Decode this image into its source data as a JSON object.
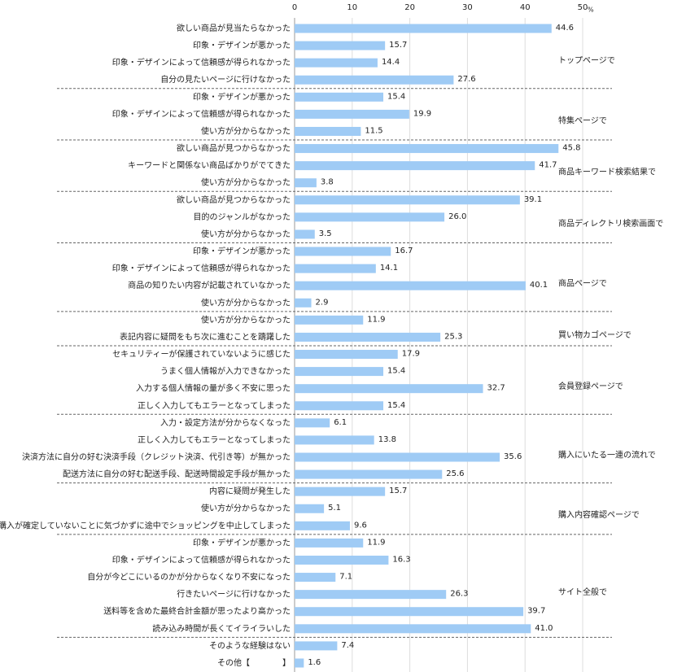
{
  "chart_data": {
    "type": "bar",
    "orientation": "horizontal",
    "color": "#9fcbf5",
    "xlim": [
      0,
      50
    ],
    "xticks": [
      0,
      10,
      20,
      30,
      40,
      50
    ],
    "x_unit": "%",
    "grid": true,
    "groups": [
      {
        "label": "トップページで",
        "categories": [
          "欲しい商品が見当たらなかった",
          "印象・デザインが悪かった",
          "印象・デザインによって信頼感が得られなかった",
          "自分の見たいページに行けなかった"
        ],
        "values": [
          44.6,
          15.7,
          14.4,
          27.6
        ],
        "value_labels": [
          "44.6",
          "15.7",
          "14.4",
          "27.6"
        ]
      },
      {
        "label": "特集ページで",
        "categories": [
          "印象・デザインが悪かった",
          "印象・デザインによって信頼感が得られなかった",
          "使い方が分からなかった"
        ],
        "values": [
          15.4,
          19.9,
          11.5
        ],
        "value_labels": [
          "15.4",
          "19.9",
          "11.5"
        ]
      },
      {
        "label": "商品キーワード検索結果で",
        "categories": [
          "欲しい商品が見つからなかった",
          "キーワードと関係ない商品ばかりがでてきた",
          "使い方が分からなかった"
        ],
        "values": [
          45.8,
          41.7,
          3.8
        ],
        "value_labels": [
          "45.8",
          "41.7",
          "3.8"
        ]
      },
      {
        "label": "商品ディレクトリ検索画面で",
        "categories": [
          "欲しい商品が見つからなかった",
          "目的のジャンルがなかった",
          "使い方が分からなかった"
        ],
        "values": [
          39.1,
          26.0,
          3.5
        ],
        "value_labels": [
          "39.1",
          "26.0",
          "3.5"
        ]
      },
      {
        "label": "商品ページで",
        "categories": [
          "印象・デザインが悪かった",
          "印象・デザインによって信頼感が得られなかった",
          "商品の知りたい内容が記載されていなかった",
          "使い方が分からなかった"
        ],
        "values": [
          16.7,
          14.1,
          40.1,
          2.9
        ],
        "value_labels": [
          "16.7",
          "14.1",
          "40.1",
          "2.9"
        ]
      },
      {
        "label": "買い物カゴページで",
        "categories": [
          "使い方が分からなかった",
          "表記内容に疑問をもち次に進むことを躊躇した"
        ],
        "values": [
          11.9,
          25.3
        ],
        "value_labels": [
          "11.9",
          "25.3"
        ]
      },
      {
        "label": "会員登録ページで",
        "categories": [
          "セキュリティーが保護されていないように感じた",
          "うまく個人情報が入力できなかった",
          "入力する個人情報の量が多く不安に思った",
          "正しく入力してもエラーとなってしまった"
        ],
        "values": [
          17.9,
          15.4,
          32.7,
          15.4
        ],
        "value_labels": [
          "17.9",
          "15.4",
          "32.7",
          "15.4"
        ]
      },
      {
        "label": "購入にいたる一連の流れで",
        "categories": [
          "入力・設定方法が分からなくなった",
          "正しく入力してもエラーとなってしまった",
          "決済方法に自分の好む決済手段（クレジット決済、代引き等）が無かった",
          "配送方法に自分の好む配送手段、配送時間設定手段が無かった"
        ],
        "values": [
          6.1,
          13.8,
          35.6,
          25.6
        ],
        "value_labels": [
          "6.1",
          "13.8",
          "35.6",
          "25.6"
        ]
      },
      {
        "label": "購入内容確認ページで",
        "categories": [
          "内容に疑問が発生した",
          "使い方が分からなかった",
          "まだ購入が確定していないことに気づかずに途中でショッピングを中止してしまった"
        ],
        "values": [
          15.7,
          5.1,
          9.6
        ],
        "value_labels": [
          "15.7",
          "5.1",
          "9.6"
        ]
      },
      {
        "label": "サイト全般で",
        "categories": [
          "印象・デザインが悪かった",
          "印象・デザインによって信頼感が得られなかった",
          "自分が今どこにいるのかが分からなくなり不安になった",
          "行きたいページに行けなかった",
          "送料等を含めた最終合計金額が思ったより高かった",
          "読み込み時間が長くてイライラいした"
        ],
        "values": [
          11.9,
          16.3,
          7.1,
          26.3,
          39.7,
          41.0
        ],
        "value_labels": [
          "11.9",
          "16.3",
          "7.1",
          "26.3",
          "39.7",
          "41.0"
        ]
      }
    ],
    "others": {
      "categories": [
        "そのような経験はない",
        "その他【　　　　】"
      ],
      "values": [
        7.4,
        1.6
      ],
      "value_labels": [
        "7.4",
        "1.6"
      ]
    }
  }
}
